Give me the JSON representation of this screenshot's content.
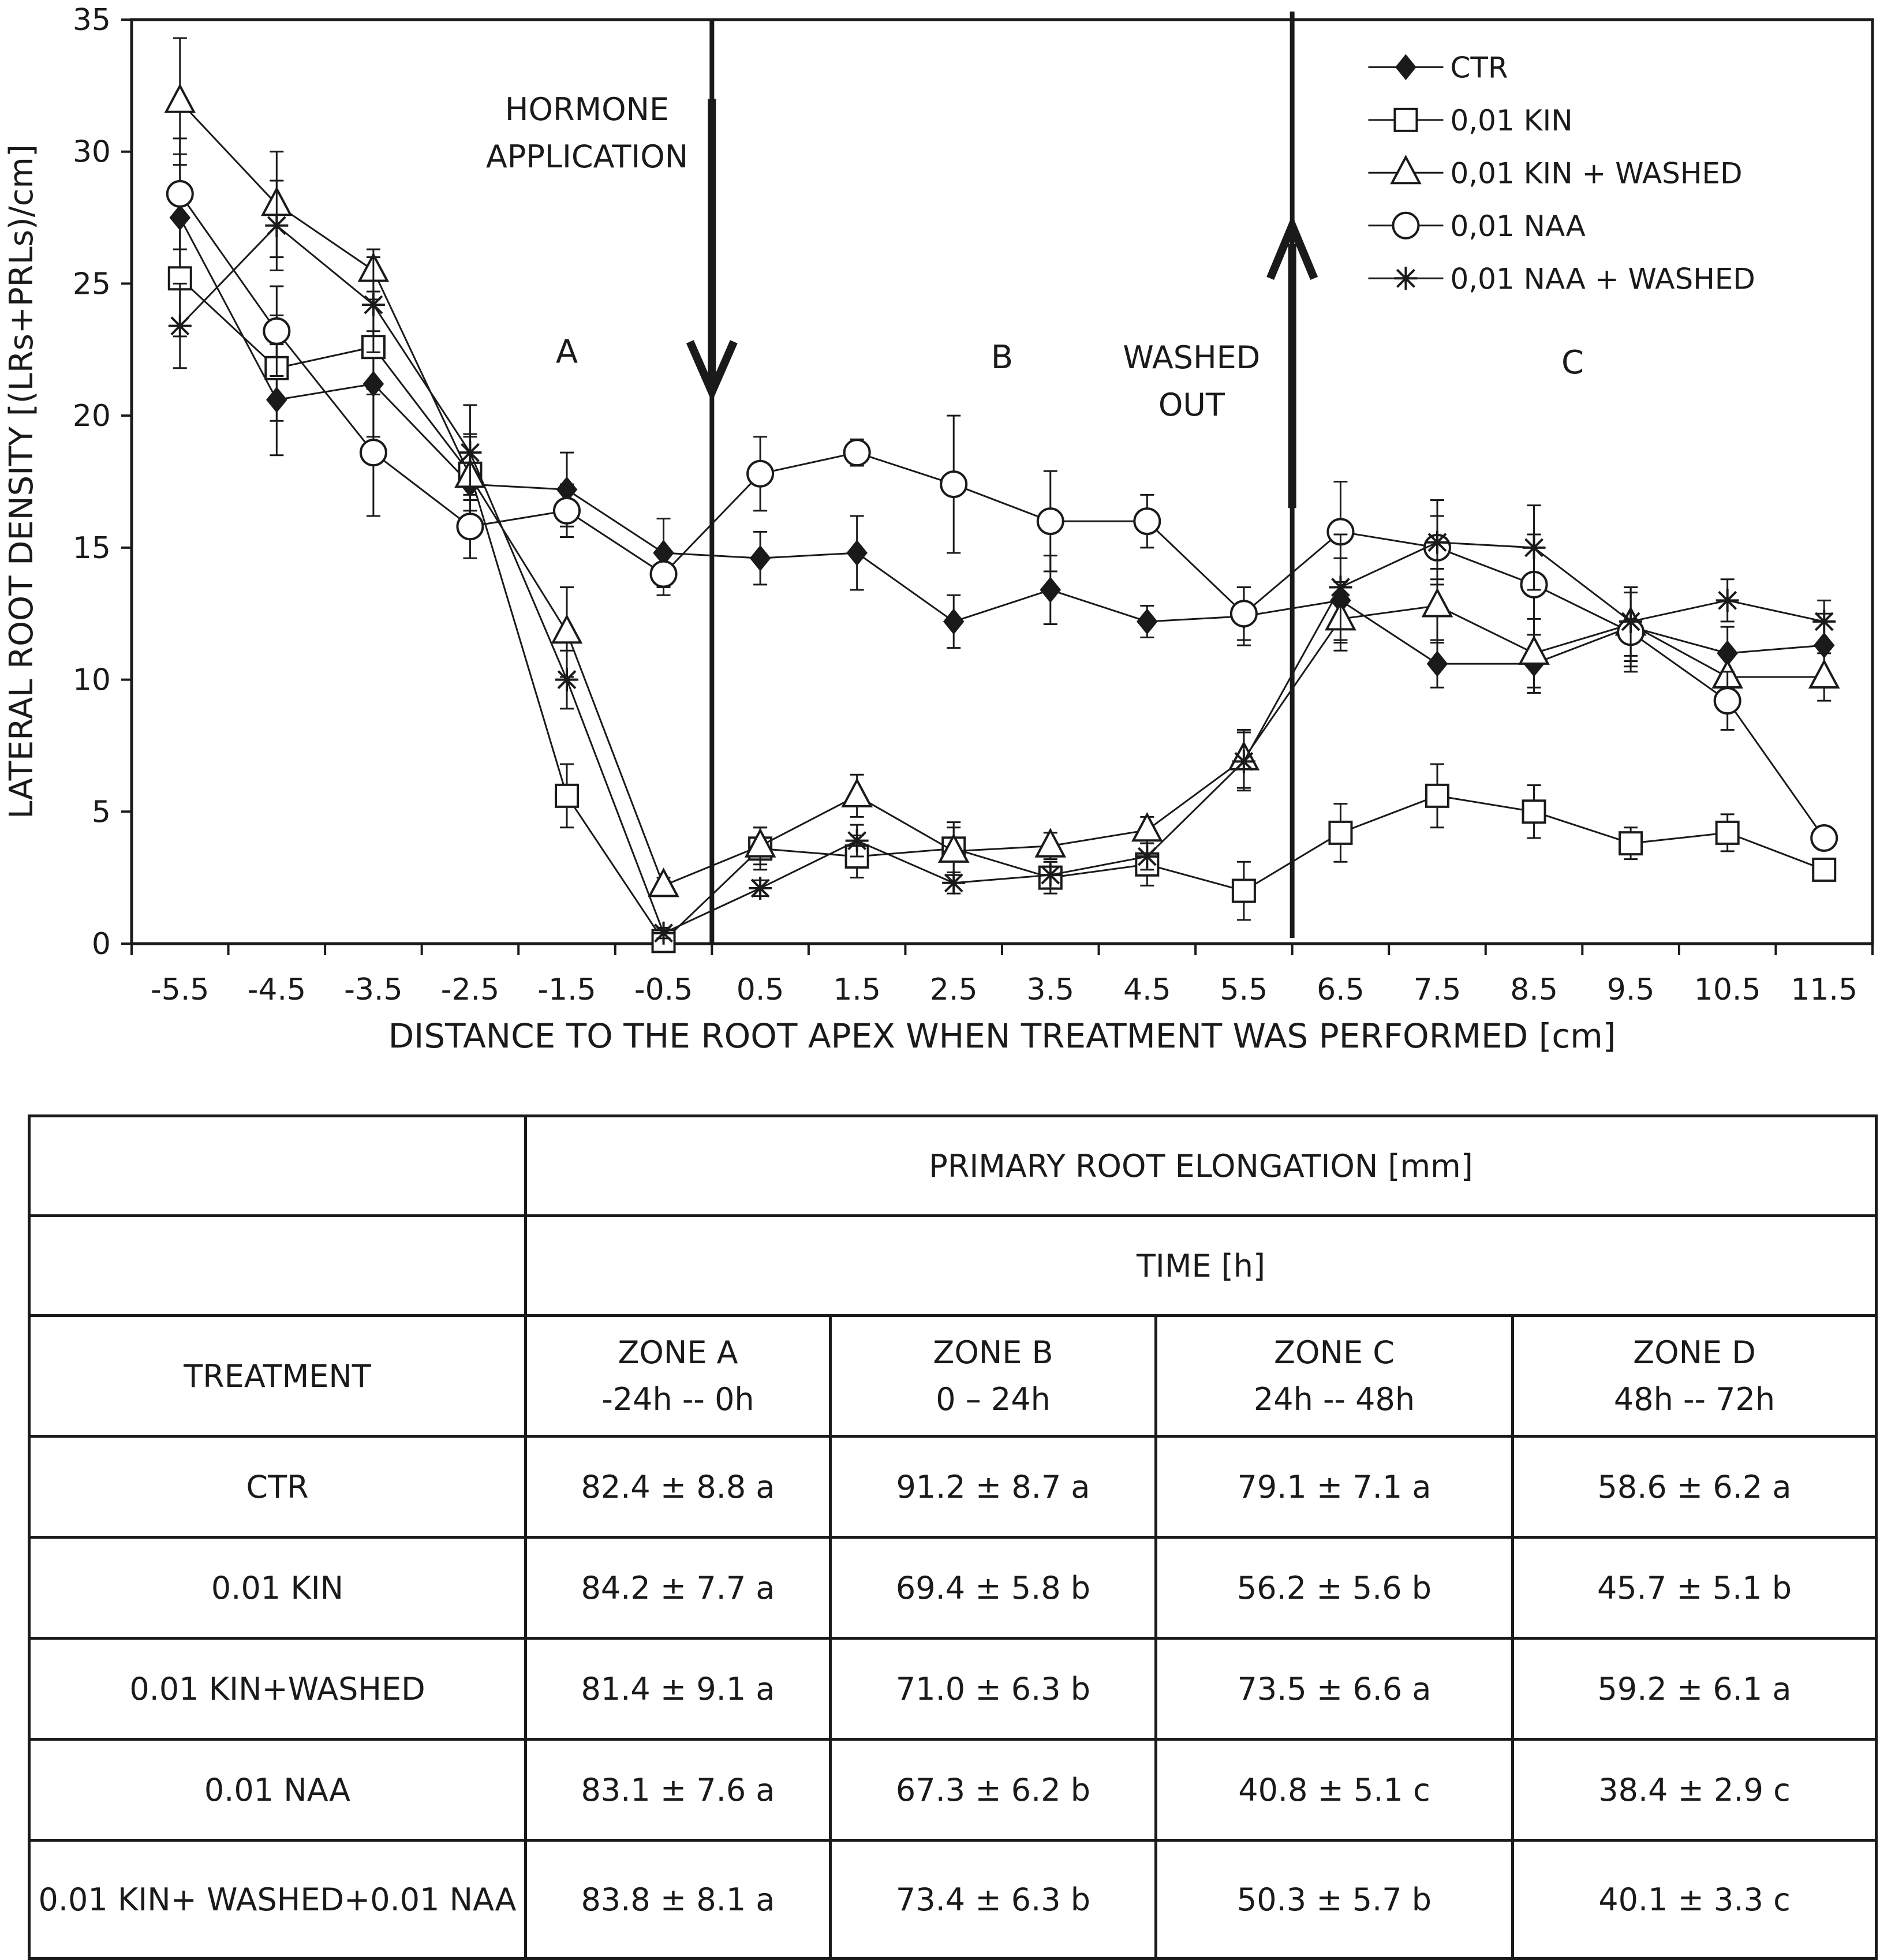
{
  "chart_data": {
    "type": "line",
    "title": "",
    "xlabel": "DISTANCE TO THE ROOT APEX WHEN TREATMENT WAS PERFORMED [cm]",
    "ylabel": "LATERAL ROOT DENSITY [(LRs+PRLs)/cm]",
    "x": [
      -5.5,
      -4.5,
      -3.5,
      -2.5,
      -1.5,
      -0.5,
      0.5,
      1.5,
      2.5,
      3.5,
      4.5,
      5.5,
      6.5,
      7.5,
      8.5,
      9.5,
      10.5,
      11.5
    ],
    "x_tick_labels": [
      "-5.5",
      "-4.5",
      "-3.5",
      "-2.5",
      "-1.5",
      "-0.5",
      "0.5",
      "1.5",
      "2.5",
      "3.5",
      "4.5",
      "5.5",
      "6.5",
      "7.5",
      "8.5",
      "9.5",
      "10.5",
      "11.5"
    ],
    "xlim": [
      -6,
      12
    ],
    "ylim": [
      0,
      35
    ],
    "y_ticks": [
      0,
      5,
      10,
      15,
      20,
      25,
      30,
      35
    ],
    "y_tick_labels": [
      "0",
      "5",
      "10",
      "15",
      "20",
      "25",
      "30",
      "35"
    ],
    "legend_position": "top-right",
    "series": [
      {
        "name": "CTR",
        "marker": "diamond-filled",
        "values": [
          27.5,
          20.6,
          21.2,
          17.4,
          17.2,
          14.8,
          14.6,
          14.8,
          12.2,
          13.4,
          12.2,
          12.4,
          13.0,
          10.6,
          10.6,
          12.0,
          11.0,
          11.3
        ],
        "errors": [
          2.4,
          2.1,
          2.0,
          1.2,
          1.4,
          1.3,
          1.0,
          1.4,
          1.0,
          1.3,
          0.6,
          1.1,
          1.6,
          0.9,
          1.1,
          1.5,
          1.0,
          1.2
        ]
      },
      {
        "name": "0,01 KIN",
        "marker": "square-open",
        "values": [
          25.2,
          21.8,
          22.6,
          17.8,
          5.6,
          0.1,
          3.6,
          3.3,
          3.6,
          2.5,
          3.0,
          2.0,
          4.2,
          5.6,
          5.0,
          3.8,
          4.2,
          2.8
        ],
        "errors": [
          2.2,
          2.0,
          1.8,
          1.4,
          1.2,
          0.1,
          0.8,
          0.8,
          1.0,
          0.6,
          0.8,
          1.1,
          1.1,
          1.2,
          1.0,
          0.6,
          0.7,
          0.4
        ]
      },
      {
        "name": "0,01 KIN + WASHED",
        "marker": "triangle-open",
        "values": [
          31.9,
          28.0,
          25.5,
          17.7,
          11.8,
          2.2,
          3.7,
          5.6,
          3.5,
          3.7,
          4.3,
          7.0,
          12.3,
          12.8,
          11.0,
          12.1,
          10.1,
          10.1
        ],
        "errors": [
          2.4,
          2.0,
          0.8,
          1.6,
          1.7,
          0.3,
          0.7,
          0.8,
          0.9,
          0.5,
          0.5,
          1.1,
          1.2,
          1.4,
          1.3,
          1.4,
          1.0,
          0.9
        ]
      },
      {
        "name": "0,01 NAA",
        "marker": "circle-open",
        "values": [
          28.4,
          23.2,
          18.6,
          15.8,
          16.4,
          14.0,
          17.8,
          18.6,
          17.4,
          16.0,
          16.0,
          12.5,
          15.6,
          15.0,
          13.6,
          11.8,
          9.2,
          4.0
        ],
        "errors": [
          2.1,
          1.7,
          2.4,
          1.2,
          1.0,
          0.8,
          1.4,
          0.5,
          2.6,
          1.9,
          1.0,
          1.0,
          1.9,
          1.2,
          1.9,
          1.5,
          1.1,
          0.4
        ]
      },
      {
        "name": "0,01 NAA + WASHED",
        "marker": "asterisk",
        "values": [
          23.4,
          27.2,
          24.2,
          18.6,
          10.0,
          0.4,
          2.1,
          3.9,
          2.3,
          2.6,
          3.3,
          6.9,
          13.5,
          15.2,
          15.0,
          12.2,
          13.0,
          12.2
        ],
        "errors": [
          1.6,
          1.7,
          1.8,
          1.8,
          1.1,
          0.2,
          0.3,
          0.6,
          0.4,
          0.5,
          0.5,
          1.1,
          2.0,
          1.6,
          1.6,
          1.3,
          0.8,
          0.8
        ]
      }
    ],
    "annotations": {
      "hormone_application": {
        "lines": [
          "HORMONE",
          "APPLICATION"
        ],
        "x": 0.0,
        "direction": "down"
      },
      "washed_out": {
        "lines": [
          "WASHED",
          "OUT"
        ],
        "x": 6.0,
        "direction": "up"
      },
      "zones": [
        {
          "label": "A",
          "x": -1.5,
          "y": 22.0
        },
        {
          "label": "B",
          "x": 3.0,
          "y": 21.8
        },
        {
          "label": "C",
          "x": 8.9,
          "y": 21.6
        }
      ]
    }
  },
  "table": {
    "header_top": "PRIMARY ROOT ELONGATION [mm]",
    "header_time": "TIME [h]",
    "treatment_label": "TREATMENT",
    "zones": [
      {
        "name": "ZONE A",
        "range": "-24h -- 0h"
      },
      {
        "name": "ZONE B",
        "range": "0 – 24h"
      },
      {
        "name": "ZONE C",
        "range": "24h -- 48h"
      },
      {
        "name": "ZONE D",
        "range": "48h -- 72h"
      }
    ],
    "rows": [
      {
        "treatment": "CTR",
        "values": [
          "82.4 ± 8.8 a",
          "91.2 ± 8.7 a",
          "79.1 ± 7.1 a",
          "58.6 ± 6.2 a"
        ]
      },
      {
        "treatment": "0.01 KIN",
        "values": [
          "84.2 ± 7.7 a",
          "69.4 ± 5.8 b",
          "56.2 ± 5.6 b",
          "45.7 ± 5.1 b"
        ]
      },
      {
        "treatment": "0.01 KIN+WASHED",
        "values": [
          "81.4 ± 9.1 a",
          "71.0 ± 6.3 b",
          "73.5 ± 6.6 a",
          "59.2 ± 6.1 a"
        ]
      },
      {
        "treatment": "0.01 NAA",
        "values": [
          "83.1 ± 7.6 a",
          "67.3 ± 6.2 b",
          "40.8 ± 5.1 c",
          "38.4 ± 2.9 c"
        ]
      },
      {
        "treatment": "0.01 KIN+ WASHED+0.01 NAA",
        "values": [
          "83.8 ± 8.1 a",
          "73.4 ± 6.3 b",
          "50.3 ± 5.7 b",
          "40.1 ± 3.3 c"
        ]
      }
    ]
  }
}
